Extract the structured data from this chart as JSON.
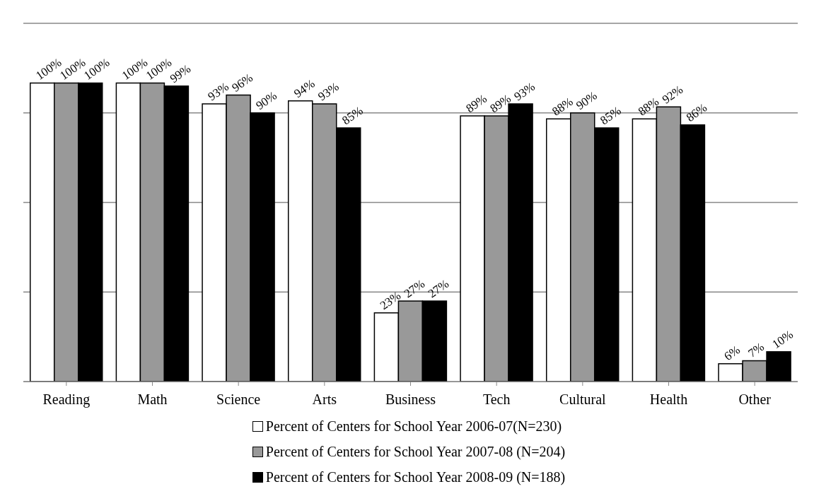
{
  "chart_data": {
    "type": "bar",
    "categories": [
      "Reading",
      "Math",
      "Science",
      "Arts",
      "Business",
      "Tech",
      "Cultural",
      "Health",
      "Other"
    ],
    "series": [
      {
        "name": "Percent of Centers for School Year 2006-07(N=230)",
        "color": "#ffffff",
        "values": [
          100,
          100,
          93,
          94,
          23,
          89,
          88,
          88,
          6
        ],
        "value_labels": [
          "100%",
          "100%",
          "93%",
          "94%",
          "23%",
          "89%",
          "88%",
          "88%",
          "6%"
        ]
      },
      {
        "name": "Percent of Centers for School Year 2007-08 (N=204)",
        "color": "#999999",
        "values": [
          100,
          100,
          96,
          93,
          27,
          89,
          90,
          92,
          7
        ],
        "value_labels": [
          "100%",
          "100%",
          "96%",
          "93%",
          "27%",
          "89%",
          "90%",
          "92%",
          "7%"
        ]
      },
      {
        "name": "Percent of Centers for School Year 2008-09 (N=188)",
        "color": "#000000",
        "values": [
          100,
          99,
          90,
          85,
          27,
          93,
          85,
          86,
          10
        ],
        "value_labels": [
          "100%",
          "99%",
          "90%",
          "85%",
          "27%",
          "93%",
          "85%",
          "86%",
          "10%"
        ]
      }
    ],
    "ylim": [
      0,
      120
    ],
    "tick_labels": "x",
    "grid": "y",
    "legend": "bottom"
  }
}
